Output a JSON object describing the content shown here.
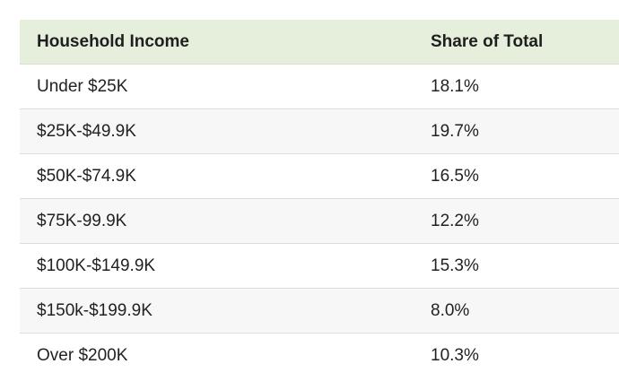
{
  "table": {
    "headers": [
      "Household Income",
      "Share of Total"
    ],
    "rows": [
      [
        "Under $25K",
        "18.1%"
      ],
      [
        "$25K-$49.9K",
        "19.7%"
      ],
      [
        "$50K-$74.9K",
        "16.5%"
      ],
      [
        "$75K-99.9K",
        "12.2%"
      ],
      [
        "$100K-$149.9K",
        "15.3%"
      ],
      [
        "$150k-$199.9K",
        "8.0%"
      ],
      [
        "Over $200K",
        "10.3%"
      ]
    ]
  },
  "colors": {
    "header_bg": "#e5efdc",
    "alt_row_bg": "#f7f7f7",
    "border": "#dcdcdc",
    "text": "#222222"
  }
}
